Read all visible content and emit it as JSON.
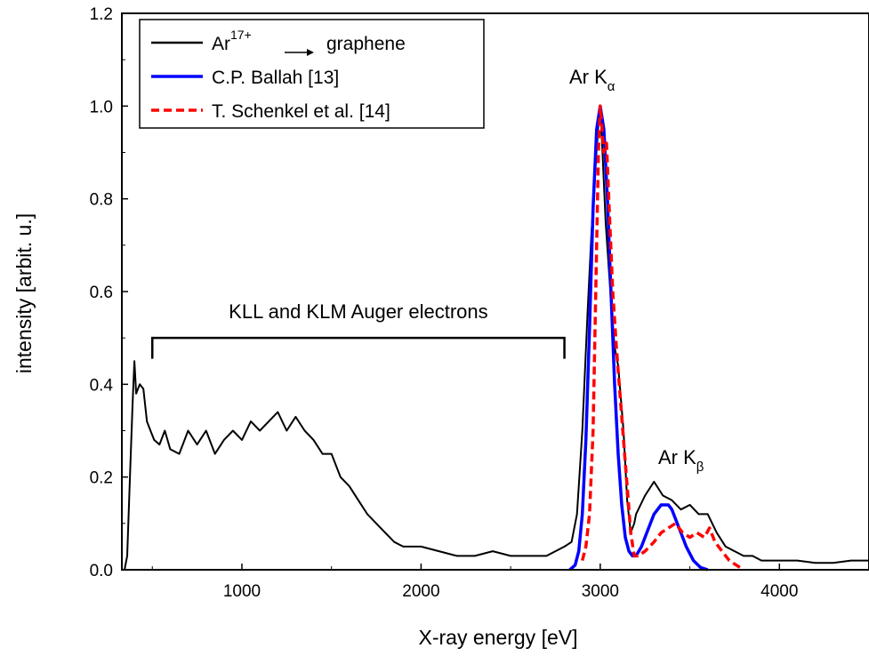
{
  "chart_data": {
    "type": "line",
    "title": "",
    "xlabel": "X-ray energy [eV]",
    "ylabel": "intensity [arbit. u.]",
    "xlim": [
      330,
      4500
    ],
    "ylim": [
      0.0,
      1.2
    ],
    "xticks": [
      1000,
      2000,
      3000,
      4000
    ],
    "xtick_labels": [
      "1000",
      "2000",
      "3000",
      "4000"
    ],
    "yticks": [
      0.0,
      0.2,
      0.4,
      0.6,
      0.8,
      1.0,
      1.2
    ],
    "ytick_labels": [
      "0.0",
      "0.2",
      "0.4",
      "0.6",
      "0.8",
      "1.0",
      "1.2"
    ],
    "grid": false,
    "legend_position": "top-left",
    "legend": {
      "arrow_text": "graphene",
      "entry1_base": "Ar",
      "entry1_sup": "17+",
      "entry2": "C.P. Ballah [13]",
      "entry3": "T. Schenkel et al. [14]"
    },
    "annotations": {
      "auger": "KLL and KLM Auger electrons",
      "auger_range": [
        500,
        2800
      ],
      "auger_y": 0.5,
      "ka_base": "Ar K",
      "ka_sub": "α",
      "kb_base": "Ar K",
      "kb_sub": "β"
    },
    "series": [
      {
        "name": "Ar17+ → graphene",
        "color": "#000000",
        "style": "solid",
        "x": [
          330,
          345,
          360,
          375,
          390,
          400,
          410,
          430,
          450,
          470,
          490,
          510,
          540,
          570,
          600,
          650,
          700,
          750,
          800,
          850,
          900,
          950,
          1000,
          1050,
          1100,
          1150,
          1200,
          1250,
          1300,
          1350,
          1400,
          1450,
          1500,
          1550,
          1600,
          1650,
          1700,
          1750,
          1800,
          1850,
          1900,
          1950,
          2000,
          2100,
          2200,
          2300,
          2400,
          2500,
          2600,
          2700,
          2800,
          2840,
          2870,
          2900,
          2930,
          2950,
          2970,
          2990,
          3000,
          3010,
          3030,
          3060,
          3080,
          3100,
          3130,
          3150,
          3170,
          3190,
          3200,
          3250,
          3300,
          3350,
          3400,
          3450,
          3500,
          3550,
          3600,
          3650,
          3700,
          3750,
          3800,
          3850,
          3900,
          3950,
          4000,
          4100,
          4200,
          4300,
          4400,
          4500
        ],
        "y": [
          0.0,
          0.0,
          0.03,
          0.2,
          0.36,
          0.45,
          0.38,
          0.4,
          0.39,
          0.32,
          0.3,
          0.28,
          0.27,
          0.3,
          0.26,
          0.25,
          0.3,
          0.27,
          0.3,
          0.25,
          0.28,
          0.3,
          0.28,
          0.32,
          0.3,
          0.32,
          0.34,
          0.3,
          0.33,
          0.3,
          0.28,
          0.25,
          0.25,
          0.2,
          0.18,
          0.15,
          0.12,
          0.1,
          0.08,
          0.06,
          0.05,
          0.05,
          0.05,
          0.04,
          0.03,
          0.03,
          0.04,
          0.03,
          0.03,
          0.03,
          0.05,
          0.06,
          0.12,
          0.3,
          0.56,
          0.72,
          0.85,
          0.96,
          1.0,
          0.92,
          0.75,
          0.58,
          0.48,
          0.44,
          0.3,
          0.15,
          0.08,
          0.1,
          0.12,
          0.16,
          0.19,
          0.16,
          0.15,
          0.13,
          0.14,
          0.12,
          0.12,
          0.08,
          0.05,
          0.04,
          0.03,
          0.03,
          0.02,
          0.02,
          0.02,
          0.02,
          0.015,
          0.015,
          0.02,
          0.02
        ]
      },
      {
        "name": "C.P. Ballah [13]",
        "color": "#0000ff",
        "style": "solid",
        "x": [
          2830,
          2860,
          2880,
          2900,
          2920,
          2940,
          2960,
          2980,
          3000,
          3020,
          3040,
          3060,
          3080,
          3100,
          3120,
          3140,
          3160,
          3180,
          3200,
          3230,
          3260,
          3300,
          3340,
          3380,
          3400,
          3420,
          3450,
          3480,
          3520,
          3560,
          3600
        ],
        "y": [
          0.0,
          0.01,
          0.04,
          0.12,
          0.28,
          0.52,
          0.78,
          0.95,
          1.0,
          0.95,
          0.8,
          0.6,
          0.4,
          0.25,
          0.14,
          0.07,
          0.04,
          0.03,
          0.03,
          0.05,
          0.08,
          0.12,
          0.14,
          0.14,
          0.13,
          0.11,
          0.08,
          0.05,
          0.02,
          0.005,
          0.0
        ]
      },
      {
        "name": "T. Schenkel et al. [14]",
        "color": "#ff0000",
        "style": "dashed",
        "x": [
          2900,
          2920,
          2940,
          2960,
          2975,
          2990,
          3000,
          3010,
          3020,
          3035,
          3050,
          3070,
          3090,
          3110,
          3130,
          3150,
          3170,
          3190,
          3210,
          3250,
          3300,
          3340,
          3380,
          3420,
          3460,
          3500,
          3540,
          3580,
          3610,
          3640,
          3680,
          3720,
          3760,
          3800
        ],
        "y": [
          0.02,
          0.05,
          0.12,
          0.3,
          0.6,
          0.9,
          1.0,
          0.95,
          0.9,
          0.92,
          0.78,
          0.6,
          0.48,
          0.38,
          0.28,
          0.18,
          0.08,
          0.03,
          0.03,
          0.04,
          0.06,
          0.08,
          0.09,
          0.1,
          0.08,
          0.07,
          0.08,
          0.07,
          0.09,
          0.06,
          0.04,
          0.02,
          0.01,
          0.0
        ]
      }
    ]
  }
}
